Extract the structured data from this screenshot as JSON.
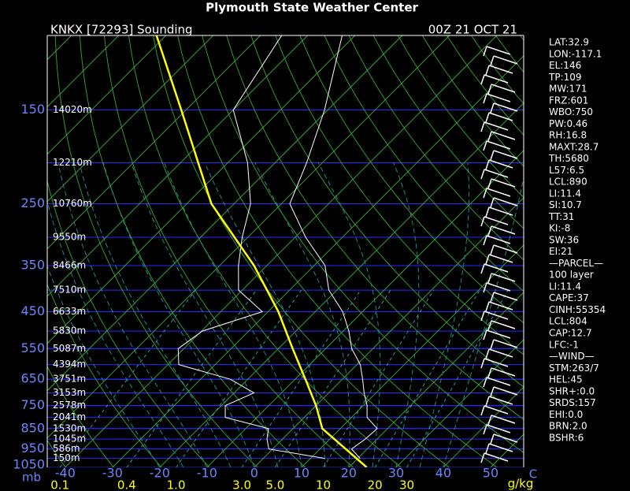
{
  "chart_data": {
    "type": "skewt",
    "title": "Plymouth State Weather Center",
    "station": "KNKX [72293] Sounding",
    "time": "00Z 21 OCT 21",
    "y_unit": "mb",
    "x_unit": "C",
    "mixing_unit": "g/kg",
    "log_y": true,
    "ylim": [
      1050,
      100
    ],
    "yticks": [
      150,
      250,
      350,
      450,
      550,
      650,
      750,
      850,
      950,
      1050
    ],
    "xlim": [
      -43.8,
      57
    ],
    "xticks": [
      -40,
      -30,
      -20,
      -10,
      0,
      10,
      20,
      30,
      40,
      50
    ],
    "mixing_ratio_ticks": [
      0.1,
      0.4,
      {
        "value": 1,
        "label": "1.0"
      },
      {
        "value": 3,
        "label": "3.0"
      },
      {
        "value": 5,
        "label": "5.0"
      },
      10,
      20,
      30
    ],
    "height_levels": [
      150,
      200,
      250,
      300,
      350,
      400,
      450,
      500,
      550,
      600,
      650,
      700,
      750,
      800,
      850,
      900,
      950,
      1000
    ],
    "height_labels": [
      "14020m",
      "12210m",
      "10760m",
      "9550m",
      "8466m",
      "7510m",
      "6633m",
      "5830m",
      "5087m",
      "4394m",
      "3751m",
      "3153m",
      "2578m",
      "2041m",
      "1530m",
      "1045m",
      "586m",
      "150m"
    ],
    "pressure": [
      1000,
      950,
      900,
      850,
      800,
      750,
      700,
      650,
      600,
      550,
      500,
      450,
      400,
      350,
      300,
      250,
      200,
      150,
      100
    ],
    "series": [
      {
        "color": "#ffffff",
        "values": [
          20.5,
          16.7,
          17.5,
          17.8,
          13.3,
          10.8,
          7.5,
          4.3,
          0.7,
          -4.5,
          -8.8,
          -14.2,
          -21.7,
          -27.7,
          -37.8,
          -48.2,
          -53.3,
          -60.7,
          -72.7
        ]
      },
      {
        "color": "#ffffff",
        "values": [
          13,
          -0.8,
          -3.3,
          -5.2,
          -16.7,
          -19.2,
          -15.8,
          -23.7,
          -37.7,
          -41.2,
          -39.8,
          -31.2,
          -40.8,
          -46,
          -51.2,
          -56.5,
          -65.8,
          -80,
          -85.5
        ]
      }
    ],
    "parcel": {
      "color": "#ffff00",
      "pressure": [
        1050,
        850,
        750,
        650,
        550,
        450,
        350,
        250,
        150,
        100
      ],
      "values": [
        23.8,
        6.2,
        0,
        -7.8,
        -17,
        -27.8,
        -42.7,
        -64.8,
        -91,
        -112
      ]
    },
    "sidebar": [
      "LAT:32.9",
      "LON:-117.1",
      "EL:146",
      "TP:109",
      "MW:171",
      "FRZ:601",
      "WBO:750",
      "PW:0.46",
      "RH:16.8",
      "MAXT:28.7",
      "TH:5680",
      "L57:6.5",
      "LCL:890",
      "LI:11.4",
      "SI:10.7",
      "TT:31",
      "KI:-8",
      "SW:36",
      "EI:21",
      "—PARCEL—",
      "100 layer",
      "LI:11.4",
      "CAPE:37",
      "CINH:55354",
      "LCL:804",
      "CAP:12.7",
      "LFC:-1",
      "—WIND—",
      "STM:263/7",
      "HEL:45",
      "SHR+:0.0",
      "SRDS:157",
      "EHI:0.0",
      "BRN:2.0",
      "BSHR:6"
    ]
  }
}
